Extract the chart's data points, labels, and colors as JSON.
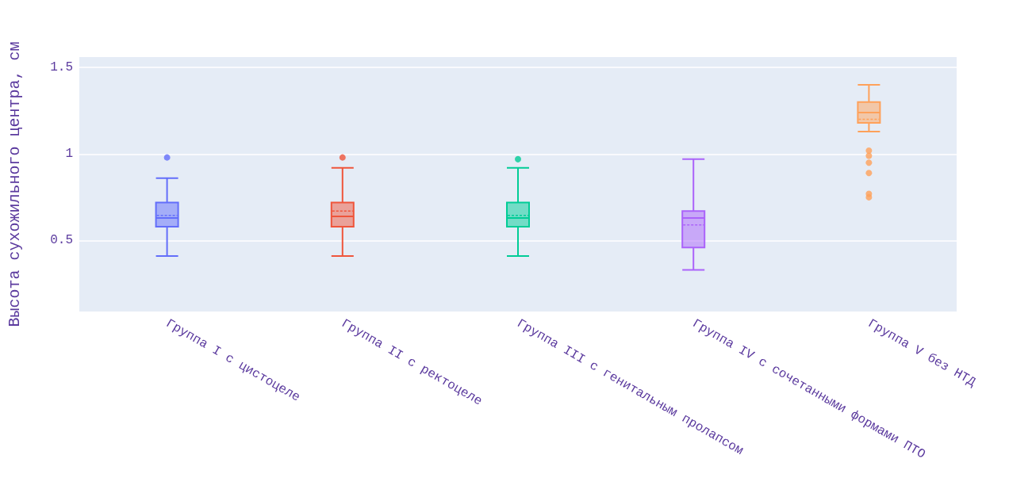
{
  "chart_data": {
    "type": "box",
    "ylabel": "Высота сухожильного центра, см",
    "categories": [
      "Группа I с цистоцеле",
      "Группа II с ректоцеле",
      "Группа III с генитальным пролапсом",
      "Группа IV с сочетанными формами ПТО",
      "Группа V без НТД"
    ],
    "colors": [
      "#636efa",
      "#ef553b",
      "#00cc96",
      "#ab63fa",
      "#ffa15a"
    ],
    "boxes": [
      {
        "low": 0.41,
        "q1": 0.58,
        "median": 0.63,
        "q3": 0.72,
        "high": 0.86,
        "mean": 0.645,
        "outliers": [
          0.98
        ]
      },
      {
        "low": 0.41,
        "q1": 0.58,
        "median": 0.64,
        "q3": 0.72,
        "high": 0.92,
        "mean": 0.67,
        "outliers": [
          0.98
        ]
      },
      {
        "low": 0.41,
        "q1": 0.58,
        "median": 0.63,
        "q3": 0.72,
        "high": 0.92,
        "mean": 0.645,
        "outliers": [
          0.97
        ]
      },
      {
        "low": 0.33,
        "q1": 0.46,
        "median": 0.63,
        "q3": 0.67,
        "high": 0.97,
        "mean": 0.59
      },
      {
        "low": 1.13,
        "q1": 1.18,
        "median": 1.24,
        "q3": 1.3,
        "high": 1.4,
        "mean": 1.2,
        "outliers": [
          1.02,
          0.99,
          0.95,
          0.89,
          0.77,
          0.75
        ]
      }
    ],
    "ylim": [
      0.09,
      1.56
    ],
    "yticks": [
      0.5,
      1,
      1.5
    ],
    "grid": "y"
  }
}
